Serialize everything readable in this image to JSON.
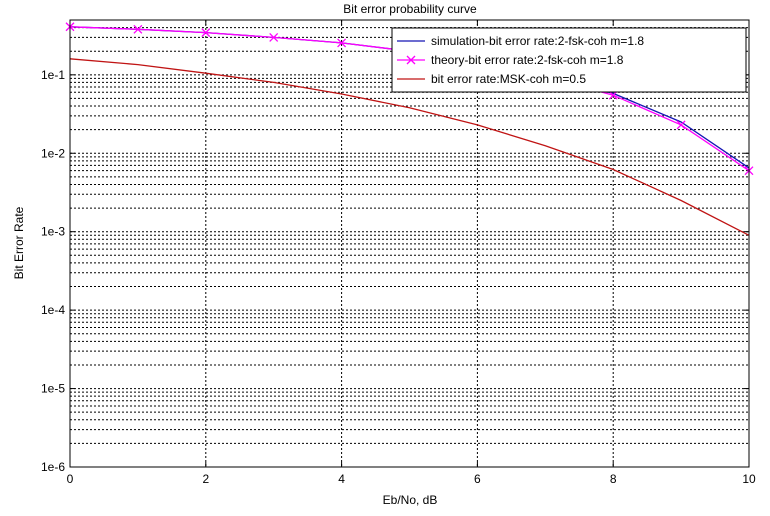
{
  "chart_data": {
    "type": "line",
    "title": "Bit error probability curve",
    "xlabel": "Eb/No, dB",
    "ylabel": "Bit Error Rate",
    "xlim": [
      0,
      10
    ],
    "ylim": [
      1e-06,
      0.5
    ],
    "yscale": "log",
    "grid": true,
    "legend_position": "top-right",
    "x_ticks": [
      0,
      2,
      4,
      6,
      8,
      10
    ],
    "x_tick_labels": [
      "0",
      "2",
      "4",
      "6",
      "8",
      "10"
    ],
    "y_ticks": [
      0.1,
      0.01,
      0.001,
      0.0001,
      1e-05,
      1e-06
    ],
    "y_tick_labels": [
      "1e-1",
      "1e-2",
      "1e-3",
      "1e-4",
      "1e-5",
      "1e-6"
    ],
    "series": [
      {
        "name": "simulation-bit error rate:2-fsk-coh m=1.8",
        "color": "#1414b4",
        "marker": "none",
        "x": [
          0,
          1,
          2,
          3,
          4,
          5,
          6,
          7,
          8,
          9,
          10
        ],
        "y": [
          0.41,
          0.38,
          0.345,
          0.3,
          0.255,
          0.2,
          0.145,
          0.095,
          0.058,
          0.025,
          0.0065
        ]
      },
      {
        "name": "theory-bit error rate:2-fsk-coh m=1.8",
        "color": "#ff00ff",
        "marker": "x",
        "x": [
          0,
          1,
          2,
          3,
          4,
          5,
          6,
          7,
          8,
          9,
          10
        ],
        "y": [
          0.41,
          0.38,
          0.345,
          0.3,
          0.255,
          0.2,
          0.145,
          0.095,
          0.055,
          0.023,
          0.006
        ]
      },
      {
        "name": "bit error rate:MSK-coh m=0.5",
        "color": "#c01414",
        "marker": "none",
        "x": [
          0,
          1,
          2,
          3,
          4,
          5,
          6,
          7,
          8,
          9,
          10
        ],
        "y": [
          0.16,
          0.135,
          0.105,
          0.08,
          0.057,
          0.038,
          0.023,
          0.0125,
          0.0062,
          0.0025,
          0.0009
        ]
      }
    ]
  }
}
